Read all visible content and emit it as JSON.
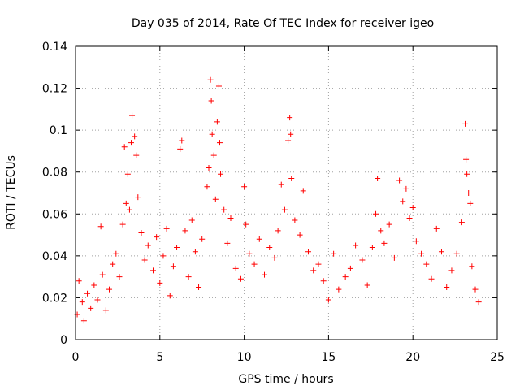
{
  "chart_data": {
    "type": "scatter",
    "title": "Day 035 of 2014, Rate Of TEC Index for receiver igeo",
    "xlabel": "GPS time / hours",
    "ylabel": "ROTI / TECUs",
    "xlim": [
      0,
      25
    ],
    "ylim": [
      0,
      0.14
    ],
    "xticks": [
      0,
      5,
      10,
      15,
      20,
      25
    ],
    "xtick_labels": [
      "0",
      "5",
      "10",
      "15",
      "20",
      "25"
    ],
    "yticks": [
      0,
      0.02,
      0.04,
      0.06,
      0.08,
      0.1,
      0.12,
      0.14
    ],
    "ytick_labels": [
      "0",
      "0.02",
      "0.04",
      "0.06",
      "0.08",
      "0.1",
      "0.12",
      "0.14"
    ],
    "grid": true,
    "marker": "plus",
    "color": "#ff0000",
    "series": [
      {
        "name": "ROTI",
        "points": [
          [
            0.1,
            0.012
          ],
          [
            0.2,
            0.028
          ],
          [
            0.4,
            0.018
          ],
          [
            0.5,
            0.009
          ],
          [
            0.7,
            0.022
          ],
          [
            0.9,
            0.015
          ],
          [
            1.1,
            0.026
          ],
          [
            1.3,
            0.019
          ],
          [
            1.5,
            0.054
          ],
          [
            1.6,
            0.031
          ],
          [
            1.8,
            0.014
          ],
          [
            2.0,
            0.024
          ],
          [
            2.2,
            0.036
          ],
          [
            2.4,
            0.041
          ],
          [
            2.6,
            0.03
          ],
          [
            2.8,
            0.055
          ],
          [
            2.9,
            0.092
          ],
          [
            3.0,
            0.065
          ],
          [
            3.1,
            0.079
          ],
          [
            3.2,
            0.062
          ],
          [
            3.3,
            0.094
          ],
          [
            3.35,
            0.107
          ],
          [
            3.5,
            0.097
          ],
          [
            3.6,
            0.088
          ],
          [
            3.7,
            0.068
          ],
          [
            3.9,
            0.051
          ],
          [
            4.1,
            0.038
          ],
          [
            4.3,
            0.045
          ],
          [
            4.6,
            0.033
          ],
          [
            4.8,
            0.049
          ],
          [
            5.0,
            0.027
          ],
          [
            5.2,
            0.04
          ],
          [
            5.4,
            0.053
          ],
          [
            5.6,
            0.021
          ],
          [
            5.8,
            0.035
          ],
          [
            6.0,
            0.044
          ],
          [
            6.2,
            0.091
          ],
          [
            6.3,
            0.095
          ],
          [
            6.5,
            0.052
          ],
          [
            6.7,
            0.03
          ],
          [
            6.9,
            0.057
          ],
          [
            7.1,
            0.042
          ],
          [
            7.3,
            0.025
          ],
          [
            7.5,
            0.048
          ],
          [
            7.8,
            0.073
          ],
          [
            7.9,
            0.082
          ],
          [
            8.0,
            0.124
          ],
          [
            8.05,
            0.114
          ],
          [
            8.1,
            0.098
          ],
          [
            8.2,
            0.088
          ],
          [
            8.3,
            0.067
          ],
          [
            8.4,
            0.104
          ],
          [
            8.5,
            0.121
          ],
          [
            8.55,
            0.094
          ],
          [
            8.6,
            0.079
          ],
          [
            8.8,
            0.062
          ],
          [
            9.0,
            0.046
          ],
          [
            9.2,
            0.058
          ],
          [
            9.5,
            0.034
          ],
          [
            9.8,
            0.029
          ],
          [
            10.0,
            0.073
          ],
          [
            10.1,
            0.055
          ],
          [
            10.3,
            0.041
          ],
          [
            10.6,
            0.036
          ],
          [
            10.9,
            0.048
          ],
          [
            11.2,
            0.031
          ],
          [
            11.5,
            0.044
          ],
          [
            11.8,
            0.039
          ],
          [
            12.0,
            0.052
          ],
          [
            12.2,
            0.074
          ],
          [
            12.4,
            0.062
          ],
          [
            12.6,
            0.095
          ],
          [
            12.7,
            0.106
          ],
          [
            12.75,
            0.098
          ],
          [
            12.8,
            0.077
          ],
          [
            13.0,
            0.057
          ],
          [
            13.3,
            0.05
          ],
          [
            13.5,
            0.071
          ],
          [
            13.8,
            0.042
          ],
          [
            14.1,
            0.033
          ],
          [
            14.4,
            0.036
          ],
          [
            14.7,
            0.028
          ],
          [
            15.0,
            0.019
          ],
          [
            15.3,
            0.041
          ],
          [
            15.6,
            0.024
          ],
          [
            16.0,
            0.03
          ],
          [
            16.3,
            0.034
          ],
          [
            16.6,
            0.045
          ],
          [
            17.0,
            0.038
          ],
          [
            17.3,
            0.026
          ],
          [
            17.6,
            0.044
          ],
          [
            17.8,
            0.06
          ],
          [
            17.9,
            0.077
          ],
          [
            18.1,
            0.052
          ],
          [
            18.3,
            0.046
          ],
          [
            18.6,
            0.055
          ],
          [
            18.9,
            0.039
          ],
          [
            19.2,
            0.076
          ],
          [
            19.4,
            0.066
          ],
          [
            19.6,
            0.072
          ],
          [
            19.8,
            0.058
          ],
          [
            20.0,
            0.063
          ],
          [
            20.2,
            0.047
          ],
          [
            20.5,
            0.041
          ],
          [
            20.8,
            0.036
          ],
          [
            21.1,
            0.029
          ],
          [
            21.4,
            0.053
          ],
          [
            21.7,
            0.042
          ],
          [
            22.0,
            0.025
          ],
          [
            22.3,
            0.033
          ],
          [
            22.6,
            0.041
          ],
          [
            22.9,
            0.056
          ],
          [
            23.1,
            0.103
          ],
          [
            23.15,
            0.086
          ],
          [
            23.2,
            0.079
          ],
          [
            23.3,
            0.07
          ],
          [
            23.4,
            0.065
          ],
          [
            23.5,
            0.035
          ],
          [
            23.7,
            0.024
          ],
          [
            23.9,
            0.018
          ]
        ]
      }
    ]
  }
}
